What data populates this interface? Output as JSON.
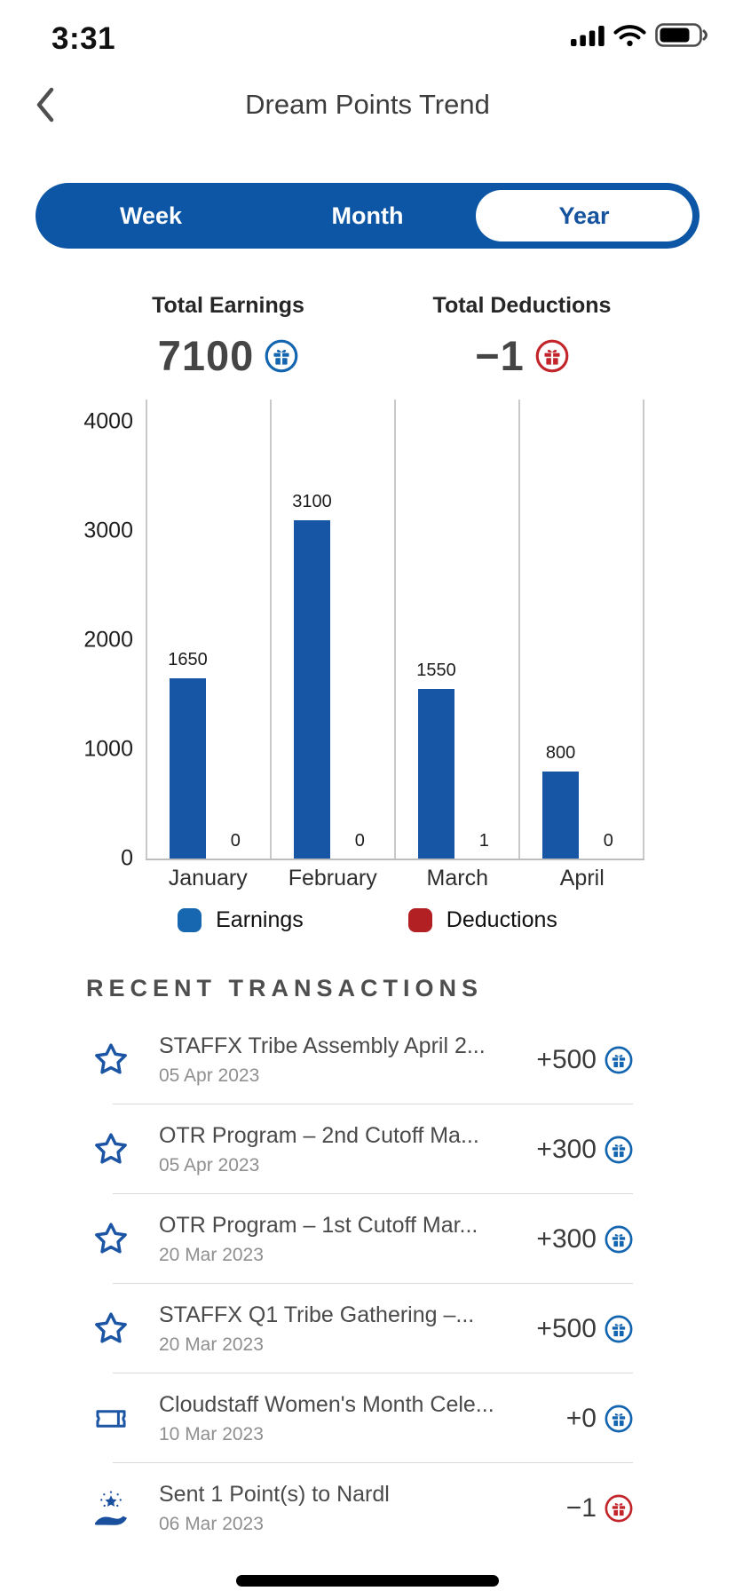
{
  "status_bar": {
    "time": "3:31",
    "icons": [
      "cellular-signal-icon",
      "wifi-icon",
      "battery-icon"
    ]
  },
  "header": {
    "title": "Dream Points Trend",
    "back_icon": "back-chevron-icon"
  },
  "range_tabs": {
    "selected": "Year",
    "options": [
      {
        "label": "Week",
        "selected": false
      },
      {
        "label": "Month",
        "selected": false
      },
      {
        "label": "Year",
        "selected": true
      }
    ]
  },
  "totals": {
    "earnings": {
      "label": "Total Earnings",
      "value": "7100",
      "badge_icon": "gift-circle-icon",
      "badge_color": "#1465af"
    },
    "deductions": {
      "label": "Total Deductions",
      "value": "−1",
      "badge_icon": "gift-circle-icon",
      "badge_color": "#c2262b"
    }
  },
  "chart_data": {
    "type": "bar",
    "categories": [
      "January",
      "February",
      "March",
      "April"
    ],
    "series": [
      {
        "name": "Earnings",
        "color": "#1656a4",
        "values": [
          1650,
          3100,
          1550,
          800
        ]
      },
      {
        "name": "Deductions",
        "color": "#b32024",
        "values": [
          0,
          0,
          1,
          0
        ]
      }
    ],
    "title": "",
    "xlabel": "",
    "ylabel": "",
    "ylim": [
      0,
      4000
    ],
    "yticks": [
      0,
      1000,
      2000,
      3000,
      4000
    ],
    "bar_value_labels": true,
    "grid": "vertical-separators-only",
    "legend_position": "bottom"
  },
  "legend": [
    {
      "label": "Earnings",
      "color": "#1767b0"
    },
    {
      "label": "Deductions",
      "color": "#b32024"
    }
  ],
  "transactions": {
    "heading": "RECENT TRANSACTIONS",
    "items": [
      {
        "icon": "star-icon",
        "title": "STAFFX Tribe Assembly April 2...",
        "date": "05 Apr 2023",
        "amount": "+500",
        "direction": "earn"
      },
      {
        "icon": "star-icon",
        "title": "OTR Program – 2nd Cutoff Ma...",
        "date": "05 Apr 2023",
        "amount": "+300",
        "direction": "earn"
      },
      {
        "icon": "star-icon",
        "title": "OTR Program – 1st Cutoff Mar...",
        "date": "20 Mar 2023",
        "amount": "+300",
        "direction": "earn"
      },
      {
        "icon": "star-icon",
        "title": "STAFFX Q1 Tribe Gathering –...",
        "date": "20 Mar 2023",
        "amount": "+500",
        "direction": "earn"
      },
      {
        "icon": "ticket-icon",
        "title": "Cloudstaff Women's Month Cele...",
        "date": "10 Mar 2023",
        "amount": "+0",
        "direction": "earn"
      },
      {
        "icon": "hand-star-icon",
        "title": "Sent 1 Point(s) to Nardl",
        "date": "06 Mar 2023",
        "amount": "−1",
        "direction": "deduct"
      }
    ]
  },
  "colors": {
    "primary_blue": "#0d56a5",
    "bar_blue": "#1656a4",
    "legend_blue": "#1767b0",
    "deduction_red": "#b32024",
    "badge_red": "#c2262b"
  }
}
